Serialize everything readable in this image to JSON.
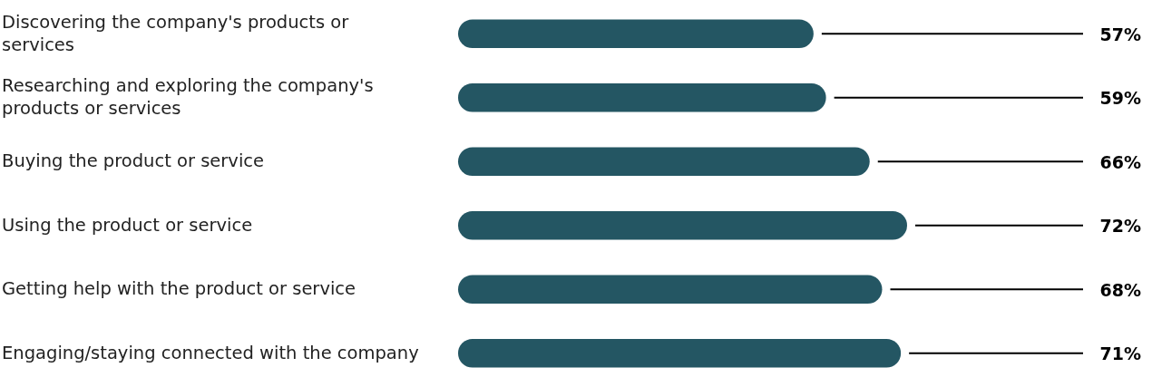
{
  "chart_data": {
    "type": "bar",
    "orientation": "horizontal",
    "categories": [
      "Discovering the company's products or services",
      "Researching and exploring the company's products or services",
      "Buying the product or service",
      "Using the product or service",
      "Getting help with the product or service",
      "Engaging/staying connected with the company"
    ],
    "values": [
      57,
      59,
      66,
      72,
      68,
      71
    ],
    "value_labels": [
      "57%",
      "59%",
      "66%",
      "72%",
      "68%",
      "71%"
    ],
    "color": "#245663"
  }
}
